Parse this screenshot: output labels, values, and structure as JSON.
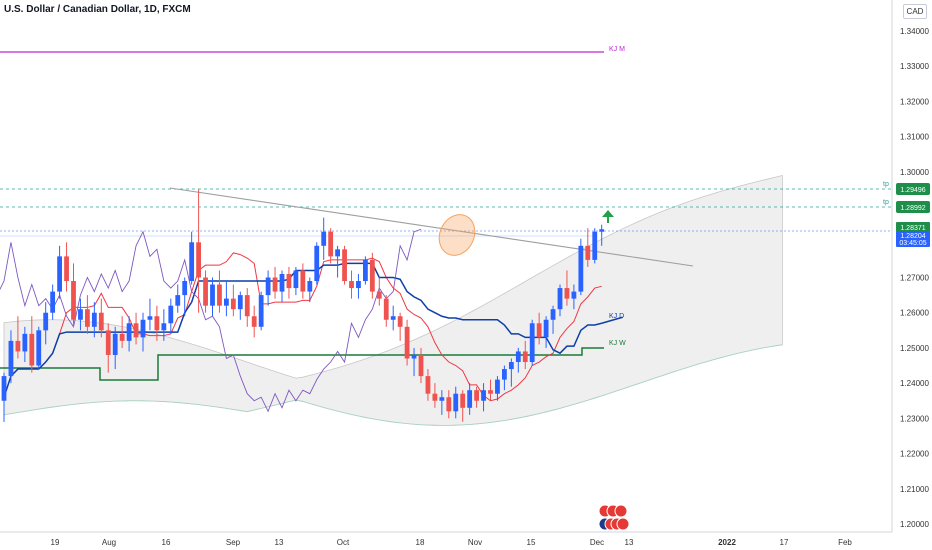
{
  "header": {
    "title": "U.S. Dollar / Canadian Dollar, 1D, FXCM",
    "currency": "CAD"
  },
  "price_scale": {
    "ticks": [
      "1.34000",
      "1.33000",
      "1.32000",
      "1.31000",
      "1.30000",
      "1.29000",
      "1.28000",
      "1.27000",
      "1.26000",
      "1.25000",
      "1.24000",
      "1.23000",
      "1.22000",
      "1.21000",
      "1.20000"
    ]
  },
  "time_scale": {
    "ticks": [
      "19",
      "Aug",
      "16",
      "Sep",
      "13",
      "Oct",
      "18",
      "Nov",
      "15",
      "Dec",
      "13",
      "2022",
      "17",
      "Feb"
    ]
  },
  "labels": {
    "kj_m": "KJ M",
    "kj_d": "KJ D",
    "kj_w": "KJ W",
    "tp1": "tp",
    "tp2": "tp",
    "price_tag_tp1": "1.29496",
    "price_tag_tp2": "1.28992",
    "price_tag_current": "1.28204",
    "price_tag_current_sub": "1.28371",
    "countdown": "03:45:05"
  },
  "colors": {
    "background": "#ffffff",
    "bull": "#2962ff",
    "bear": "#ef5350",
    "tenkan": "#f23645",
    "kijun_d": "#0d3fa6",
    "kijun_w": "#1b7a3a",
    "kijun_m": "#c026d3",
    "chikou": "#7e57c2",
    "cloud": "#d6d6d6",
    "tp_line": "#26a69a",
    "trendline": "#9e9e9e",
    "ellipse": "#f5a25d",
    "arrow": "#22a04a"
  },
  "chart_data": {
    "type": "candlestick",
    "title": "U.S. Dollar / Canadian Dollar, 1D, FXCM",
    "y_unit": "CAD",
    "ylim": [
      1.195,
      1.349
    ],
    "time_ticks": [
      "19",
      "Aug",
      "16",
      "Sep",
      "13",
      "Oct",
      "18",
      "Nov",
      "15",
      "Dec",
      "13",
      "2022",
      "17",
      "Feb"
    ],
    "candles": [
      [
        1.235,
        1.243,
        1.229,
        1.242
      ],
      [
        1.242,
        1.255,
        1.24,
        1.252
      ],
      [
        1.252,
        1.259,
        1.247,
        1.249
      ],
      [
        1.249,
        1.256,
        1.246,
        1.254
      ],
      [
        1.254,
        1.259,
        1.243,
        1.245
      ],
      [
        1.245,
        1.256,
        1.244,
        1.255
      ],
      [
        1.255,
        1.263,
        1.251,
        1.26
      ],
      [
        1.26,
        1.268,
        1.258,
        1.266
      ],
      [
        1.266,
        1.279,
        1.264,
        1.276
      ],
      [
        1.276,
        1.28,
        1.266,
        1.269
      ],
      [
        1.269,
        1.274,
        1.256,
        1.258
      ],
      [
        1.258,
        1.264,
        1.255,
        1.261
      ],
      [
        1.261,
        1.265,
        1.254,
        1.256
      ],
      [
        1.256,
        1.263,
        1.253,
        1.26
      ],
      [
        1.26,
        1.264,
        1.253,
        1.255
      ],
      [
        1.255,
        1.257,
        1.243,
        1.248
      ],
      [
        1.248,
        1.256,
        1.244,
        1.254
      ],
      [
        1.254,
        1.259,
        1.25,
        1.252
      ],
      [
        1.252,
        1.259,
        1.249,
        1.257
      ],
      [
        1.257,
        1.26,
        1.251,
        1.253
      ],
      [
        1.253,
        1.26,
        1.249,
        1.258
      ],
      [
        1.258,
        1.264,
        1.255,
        1.259
      ],
      [
        1.259,
        1.262,
        1.252,
        1.255
      ],
      [
        1.255,
        1.261,
        1.252,
        1.257
      ],
      [
        1.257,
        1.264,
        1.254,
        1.262
      ],
      [
        1.262,
        1.268,
        1.26,
        1.265
      ],
      [
        1.265,
        1.27,
        1.259,
        1.269
      ],
      [
        1.269,
        1.283,
        1.268,
        1.28
      ],
      [
        1.28,
        1.295,
        1.26,
        1.27
      ],
      [
        1.27,
        1.272,
        1.26,
        1.262
      ],
      [
        1.262,
        1.27,
        1.259,
        1.268
      ],
      [
        1.268,
        1.272,
        1.26,
        1.262
      ],
      [
        1.262,
        1.269,
        1.259,
        1.264
      ],
      [
        1.264,
        1.268,
        1.259,
        1.261
      ],
      [
        1.261,
        1.266,
        1.258,
        1.265
      ],
      [
        1.265,
        1.267,
        1.256,
        1.259
      ],
      [
        1.259,
        1.262,
        1.253,
        1.256
      ],
      [
        1.256,
        1.266,
        1.255,
        1.265
      ],
      [
        1.265,
        1.272,
        1.262,
        1.27
      ],
      [
        1.27,
        1.273,
        1.264,
        1.266
      ],
      [
        1.266,
        1.272,
        1.263,
        1.271
      ],
      [
        1.271,
        1.273,
        1.264,
        1.267
      ],
      [
        1.267,
        1.273,
        1.265,
        1.272
      ],
      [
        1.272,
        1.274,
        1.264,
        1.266
      ],
      [
        1.266,
        1.27,
        1.263,
        1.269
      ],
      [
        1.269,
        1.28,
        1.268,
        1.279
      ],
      [
        1.279,
        1.287,
        1.275,
        1.283
      ],
      [
        1.283,
        1.284,
        1.274,
        1.276
      ],
      [
        1.276,
        1.279,
        1.27,
        1.278
      ],
      [
        1.278,
        1.279,
        1.268,
        1.269
      ],
      [
        1.269,
        1.272,
        1.264,
        1.267
      ],
      [
        1.267,
        1.271,
        1.264,
        1.269
      ],
      [
        1.269,
        1.276,
        1.268,
        1.275
      ],
      [
        1.275,
        1.277,
        1.264,
        1.266
      ],
      [
        1.266,
        1.27,
        1.262,
        1.264
      ],
      [
        1.264,
        1.265,
        1.256,
        1.258
      ],
      [
        1.258,
        1.262,
        1.255,
        1.259
      ],
      [
        1.259,
        1.26,
        1.252,
        1.256
      ],
      [
        1.256,
        1.258,
        1.245,
        1.247
      ],
      [
        1.247,
        1.25,
        1.242,
        1.248
      ],
      [
        1.248,
        1.25,
        1.24,
        1.242
      ],
      [
        1.242,
        1.244,
        1.235,
        1.237
      ],
      [
        1.237,
        1.24,
        1.233,
        1.235
      ],
      [
        1.235,
        1.238,
        1.231,
        1.236
      ],
      [
        1.236,
        1.238,
        1.23,
        1.232
      ],
      [
        1.232,
        1.239,
        1.23,
        1.237
      ],
      [
        1.237,
        1.238,
        1.229,
        1.233
      ],
      [
        1.233,
        1.24,
        1.231,
        1.238
      ],
      [
        1.238,
        1.239,
        1.233,
        1.235
      ],
      [
        1.235,
        1.24,
        1.232,
        1.238
      ],
      [
        1.238,
        1.241,
        1.235,
        1.237
      ],
      [
        1.237,
        1.242,
        1.235,
        1.241
      ],
      [
        1.241,
        1.245,
        1.238,
        1.244
      ],
      [
        1.244,
        1.247,
        1.239,
        1.246
      ],
      [
        1.246,
        1.25,
        1.243,
        1.249
      ],
      [
        1.249,
        1.252,
        1.244,
        1.246
      ],
      [
        1.246,
        1.258,
        1.245,
        1.257
      ],
      [
        1.257,
        1.26,
        1.251,
        1.253
      ],
      [
        1.253,
        1.259,
        1.25,
        1.258
      ],
      [
        1.258,
        1.262,
        1.254,
        1.261
      ],
      [
        1.261,
        1.268,
        1.259,
        1.267
      ],
      [
        1.267,
        1.272,
        1.262,
        1.264
      ],
      [
        1.264,
        1.268,
        1.261,
        1.266
      ],
      [
        1.266,
        1.281,
        1.265,
        1.279
      ],
      [
        1.279,
        1.284,
        1.273,
        1.275
      ],
      [
        1.275,
        1.284,
        1.274,
        1.283
      ],
      [
        1.283,
        1.285,
        1.279,
        1.2837
      ]
    ]
  }
}
